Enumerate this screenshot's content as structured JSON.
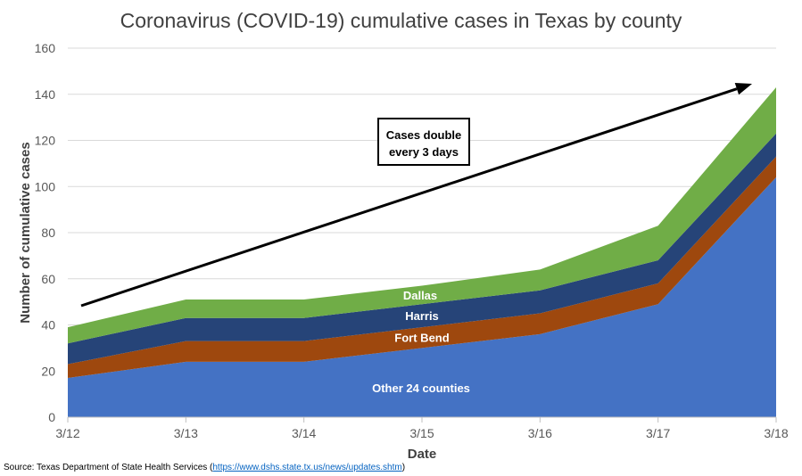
{
  "chart_data": {
    "type": "area",
    "stacked": true,
    "title": "Coronavirus (COVID-19) cumulative cases in Texas  by county",
    "xlabel": "Date",
    "ylabel": "Number of cumulative cases",
    "categories": [
      "3/12",
      "3/13",
      "3/14",
      "3/15",
      "3/16",
      "3/17",
      "3/18"
    ],
    "ylim": [
      0,
      160
    ],
    "yticks": [
      0,
      20,
      40,
      60,
      80,
      100,
      120,
      140,
      160
    ],
    "grid": true,
    "legend": "none",
    "series": [
      {
        "name": "Other 24 counties",
        "color": "#4472c4",
        "label_color": "#ffffff",
        "values": [
          17,
          24,
          24,
          30,
          36,
          49,
          104
        ]
      },
      {
        "name": "Fort Bend",
        "color": "#9e480e",
        "label_color": "#ffffff",
        "values": [
          6,
          9,
          9,
          9,
          9,
          9,
          9
        ]
      },
      {
        "name": "Harris",
        "color": "#264478",
        "label_color": "#ffffff",
        "values": [
          9,
          10,
          10,
          10,
          10,
          10,
          10
        ]
      },
      {
        "name": "Dallas",
        "color": "#70ad47",
        "label_color": "#ffffff",
        "values": [
          7,
          8,
          8,
          8,
          9,
          15,
          20
        ]
      }
    ],
    "annotation": {
      "text_line1": "Cases double",
      "text_line2": "every 3 days"
    }
  },
  "source": {
    "prefix": "Source: Texas Department of State Health Services (",
    "link": "https://www.dshs.state.tx.us/news/updates.shtm",
    "suffix": ")"
  }
}
